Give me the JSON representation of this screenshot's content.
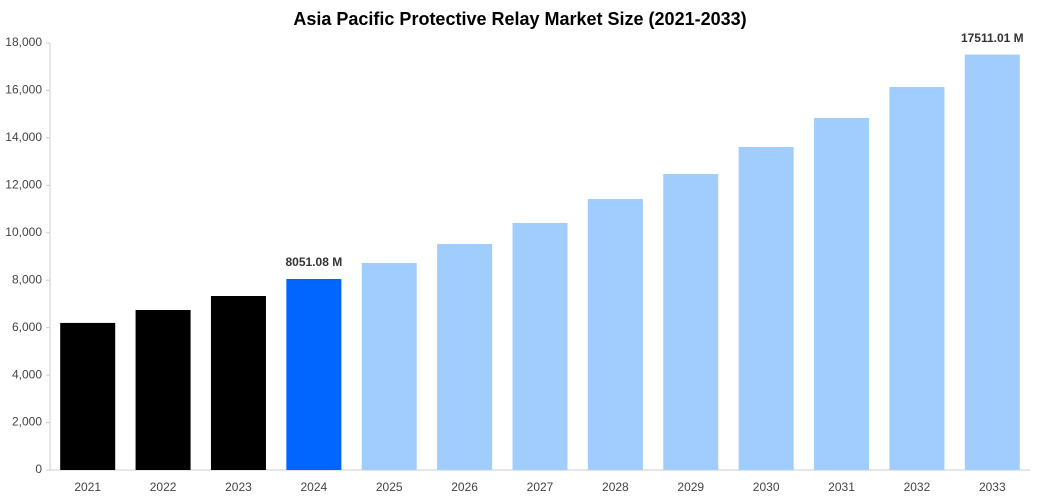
{
  "chart_data": {
    "type": "bar",
    "title": "Asia Pacific Protective Relay Market Size (2021-2033)",
    "categories": [
      "2021",
      "2022",
      "2023",
      "2024",
      "2025",
      "2026",
      "2027",
      "2028",
      "2029",
      "2030",
      "2031",
      "2032",
      "2033"
    ],
    "values": [
      6200,
      6745,
      7335,
      8051.08,
      8726,
      9527,
      10412,
      11424,
      12478,
      13616,
      14838,
      16145,
      17511.01
    ],
    "value_labels": [
      null,
      null,
      null,
      "8051.08 M",
      null,
      null,
      null,
      null,
      null,
      null,
      null,
      null,
      "17511.01 M"
    ],
    "colors": [
      "#000000",
      "#000000",
      "#000000",
      "#0066ff",
      "#a0cdfc",
      "#a0cdfc",
      "#a0cdfc",
      "#a0cdfc",
      "#a0cdfc",
      "#a0cdfc",
      "#a0cdfc",
      "#a0cdfc",
      "#a0cdfc"
    ],
    "ylim": [
      0,
      18000
    ],
    "yticks": [
      0,
      {
        "value": 2000,
        "label": "2,000"
      },
      {
        "value": 4000,
        "label": "4,000"
      },
      {
        "value": 6000,
        "label": "6,000"
      },
      {
        "value": 8000,
        "label": "8,000"
      },
      {
        "value": 10000,
        "label": "10,000"
      },
      {
        "value": 12000,
        "label": "12,000"
      },
      {
        "value": 14000,
        "label": "14,000"
      },
      {
        "value": 16000,
        "label": "16,000"
      },
      {
        "value": 18000,
        "label": "18,000"
      }
    ],
    "grid": false
  }
}
